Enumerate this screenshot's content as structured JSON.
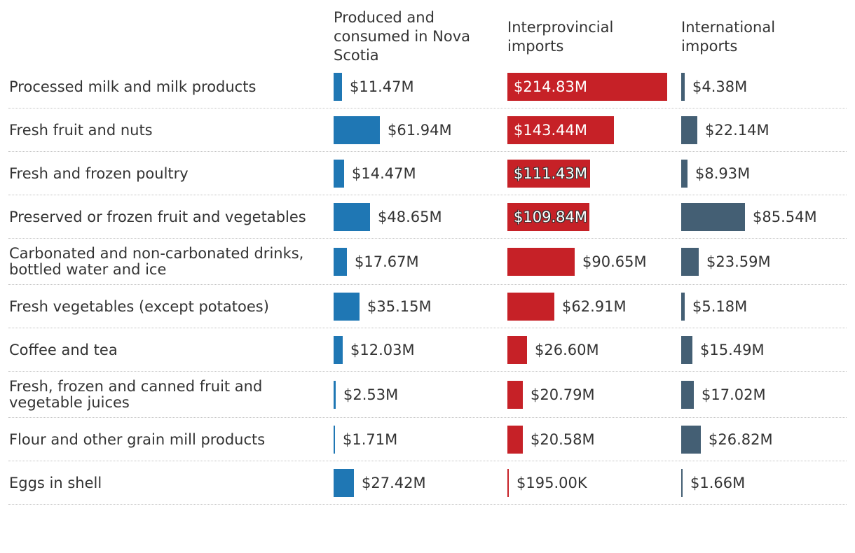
{
  "chart_data": {
    "type": "bar",
    "orientation": "horizontal",
    "layout": "small-multiples",
    "columns": [
      {
        "key": "local",
        "label": "Produced and\nconsumed in Nova\nScotia",
        "color": "#1f77b4"
      },
      {
        "key": "interprovincial",
        "label": "Interprovincial\nimports",
        "color": "#c62127"
      },
      {
        "key": "international",
        "label": "International\nimports",
        "color": "#445f74"
      }
    ],
    "categories": [
      "Processed milk and milk products",
      "Fresh fruit and nuts",
      "Fresh and frozen poultry",
      "Preserved or frozen fruit and vegetables",
      "Carbonated and non-carbonated drinks,\nbottled water and ice",
      "Fresh vegetables (except potatoes)",
      "Coffee and tea",
      "Fresh, frozen and canned fruit and\nvegetable juices",
      "Flour and other grain mill products",
      "Eggs in shell"
    ],
    "series": [
      {
        "name": "Produced and consumed in Nova Scotia",
        "values": [
          11.47,
          61.94,
          14.47,
          48.65,
          17.67,
          35.15,
          12.03,
          2.53,
          1.71,
          27.42
        ],
        "labels": [
          "$11.47M",
          "$61.94M",
          "$14.47M",
          "$48.65M",
          "$17.67M",
          "$35.15M",
          "$12.03M",
          "$2.53M",
          "$1.71M",
          "$27.42M"
        ]
      },
      {
        "name": "Interprovincial imports",
        "values": [
          214.83,
          143.44,
          111.43,
          109.84,
          90.65,
          62.91,
          26.6,
          20.79,
          20.58,
          0.195
        ],
        "labels": [
          "$214.83M",
          "$143.44M",
          "$111.43M",
          "$109.84M",
          "$90.65M",
          "$62.91M",
          "$26.60M",
          "$20.79M",
          "$20.58M",
          "$195.00K"
        ]
      },
      {
        "name": "International imports",
        "values": [
          4.38,
          22.14,
          8.93,
          85.54,
          23.59,
          5.18,
          15.49,
          17.02,
          26.82,
          1.66
        ],
        "labels": [
          "$4.38M",
          "$22.14M",
          "$8.93M",
          "$85.54M",
          "$23.59M",
          "$5.18M",
          "$15.49M",
          "$17.02M",
          "$26.82M",
          "$1.66M"
        ]
      }
    ],
    "units": "dollars (millions)",
    "xlim": [
      0,
      214.83
    ],
    "grid": false,
    "legend": "column headers at top"
  }
}
